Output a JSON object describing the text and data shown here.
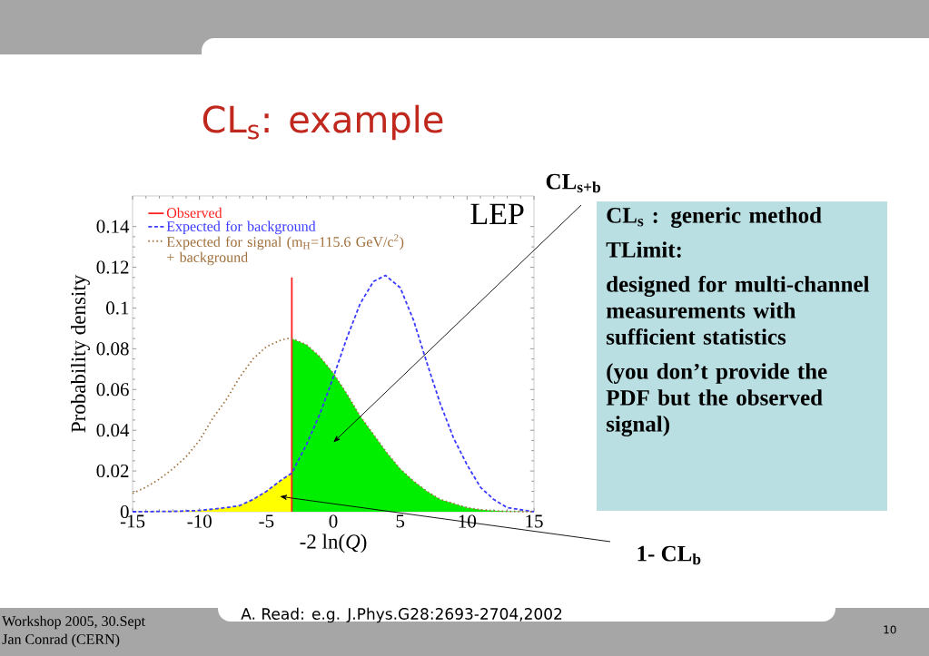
{
  "chart_data": {
    "type": "line",
    "title": "CL$_{s}$: example",
    "xlabel": "-2 ln(*Q*)",
    "ylabel": "Probability density",
    "xlim": [
      -15,
      15
    ],
    "xticks": [
      -15,
      -10,
      -5,
      0,
      5,
      10,
      15
    ],
    "ylim": [
      0,
      0.155
    ],
    "yticks": [
      0,
      0.02,
      0.04,
      0.06,
      0.08,
      0.1,
      0.12,
      0.14
    ],
    "legend": "top left",
    "series": [
      {
        "type": "area",
        "color": "#ffff00",
        "x": [
          -15,
          -12,
          -10,
          -8,
          -7,
          -6,
          -5,
          -4,
          -3.1
        ],
        "values": [
          0,
          0.0002,
          0.0006,
          0.002,
          0.003,
          0.006,
          0.01,
          0.015,
          0.019
        ]
      },
      {
        "type": "area",
        "color": "#00ee00",
        "x": [
          -3.1,
          -2,
          -1,
          0,
          1,
          2,
          3,
          4,
          5,
          6,
          7,
          8,
          9,
          10,
          11,
          12,
          13,
          15
        ],
        "values": [
          0.085,
          0.082,
          0.076,
          0.068,
          0.058,
          0.047,
          0.038,
          0.029,
          0.021,
          0.015,
          0.01,
          0.006,
          0.004,
          0.002,
          0.001,
          0.0005,
          0.0002,
          0
        ]
      },
      {
        "name": "Observed",
        "line_style": "solid",
        "color": "#ff2020",
        "x": [
          -3.1,
          -3.1
        ],
        "values": [
          0,
          0.115
        ]
      },
      {
        "name": "Expected for background",
        "line_style": "dashed",
        "color": "#3b3bff",
        "x": [
          -15,
          -12,
          -10,
          -8,
          -7,
          -6,
          -5,
          -4,
          -3.1,
          -2,
          -1,
          0,
          1,
          2,
          3,
          3.9,
          5,
          6,
          7,
          8,
          9,
          10,
          11,
          12,
          13,
          14,
          15
        ],
        "values": [
          0,
          0.0002,
          0.0006,
          0.002,
          0.003,
          0.006,
          0.01,
          0.015,
          0.019,
          0.033,
          0.048,
          0.066,
          0.085,
          0.102,
          0.113,
          0.116,
          0.11,
          0.094,
          0.073,
          0.053,
          0.036,
          0.023,
          0.012,
          0.006,
          0.002,
          0.001,
          0
        ]
      },
      {
        "name": "Expected for signal (m$_{H}$=115.6 GeV/c$^{2}$) + background",
        "line_style": "dotted",
        "color": "#a0703c",
        "x": [
          -15,
          -14,
          -13,
          -12,
          -11,
          -10,
          -9,
          -8,
          -7,
          -6,
          -5,
          -4,
          -3.5,
          -3.1,
          -2,
          -1,
          0,
          1,
          2,
          3,
          4,
          5,
          6,
          7,
          8,
          9,
          10,
          11,
          12,
          13,
          15
        ],
        "values": [
          0.009,
          0.012,
          0.016,
          0.021,
          0.027,
          0.035,
          0.046,
          0.055,
          0.066,
          0.075,
          0.081,
          0.084,
          0.085,
          0.085,
          0.082,
          0.076,
          0.068,
          0.058,
          0.047,
          0.038,
          0.029,
          0.021,
          0.015,
          0.01,
          0.006,
          0.004,
          0.002,
          0.001,
          0.0005,
          0.0002,
          0
        ]
      }
    ],
    "annotations": [
      "LEP",
      "CL$_{s+b}$",
      "1- CL$_{b}$",
      "CL$_{s}$ : generic method",
      "TLimit:",
      "designed for multi-channel measurements with sufficient statistics",
      "(you don’t provide the PDF but the observed signal)",
      "A. Read: e.g. J.Phys.G28:2693-2704,2002",
      "Workshop 2005, 30.Sept",
      "Jan Conrad (CERN)",
      "10"
    ]
  }
}
